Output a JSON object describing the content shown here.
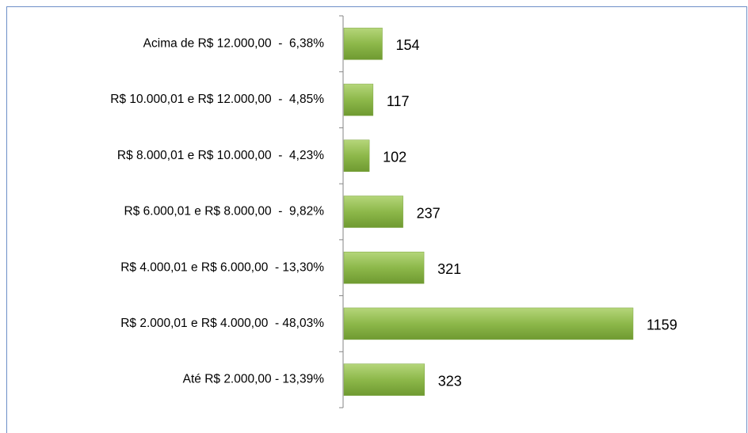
{
  "chart_data": {
    "type": "barh",
    "categories": [
      "Acima de R$ 12.000,00  -  6,38%",
      "R$ 10.000,01 e R$ 12.000,00  -  4,85%",
      "R$ 8.000,01 e R$ 10.000,00  -  4,23%",
      "R$ 6.000,01 e R$ 8.000,00  -  9,82%",
      "R$ 4.000,01 e R$ 6.000,00  - 13,30%",
      "R$ 2.000,01 e R$ 4.000,00  - 48,03%",
      "Até R$ 2.000,00 - 13,39%"
    ],
    "values": [
      154,
      117,
      102,
      237,
      321,
      1159,
      323
    ],
    "color": "#8db84a"
  }
}
